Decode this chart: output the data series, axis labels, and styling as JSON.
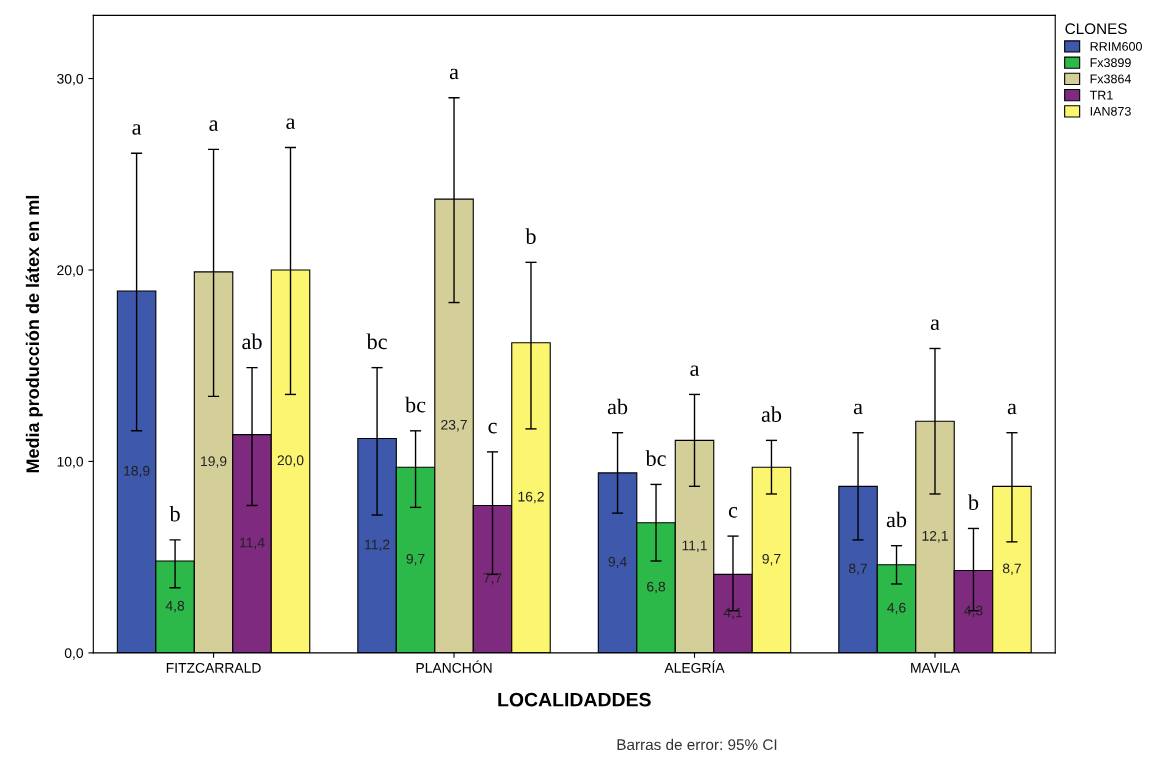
{
  "chart_data": {
    "type": "bar",
    "xlabel": "LOCALIDADDES",
    "ylabel": "Media producción de látex en ml",
    "legend_title": "CLONES",
    "categories": [
      "FITZCARRALD",
      "PLANCHÓN",
      "ALEGRÍA",
      "MAVILA"
    ],
    "series": [
      {
        "name": "RRIM600",
        "color": "#3e58ac",
        "values": [
          18.9,
          11.2,
          9.4,
          8.7
        ],
        "value_labels": [
          "18,9",
          "11,2",
          "9,4",
          "8,7"
        ],
        "errors": [
          [
            11.6,
            26.1
          ],
          [
            7.2,
            14.9
          ],
          [
            7.3,
            11.5
          ],
          [
            5.9,
            11.5
          ]
        ]
      },
      {
        "name": "Fx3899",
        "color": "#2db84a",
        "values": [
          4.8,
          9.7,
          6.8,
          4.6
        ],
        "value_labels": [
          "4,8",
          "9,7",
          "6,8",
          "4,6"
        ],
        "errors": [
          [
            3.4,
            5.9
          ],
          [
            7.6,
            11.6
          ],
          [
            4.8,
            8.8
          ],
          [
            3.6,
            5.6
          ]
        ]
      },
      {
        "name": "Fx3864",
        "color": "#d4ce98",
        "values": [
          19.9,
          23.7,
          11.1,
          12.1
        ],
        "value_labels": [
          "19,9",
          "23,7",
          "11,1",
          "12,1"
        ],
        "errors": [
          [
            13.4,
            26.3
          ],
          [
            18.3,
            29.0
          ],
          [
            8.7,
            13.5
          ],
          [
            8.3,
            15.9
          ]
        ]
      },
      {
        "name": "TR1",
        "color": "#7d2a7f",
        "values": [
          11.4,
          7.7,
          4.1,
          4.3
        ],
        "value_labels": [
          "11,4",
          "7,7",
          "4,1",
          "4,3"
        ],
        "errors": [
          [
            7.7,
            14.9
          ],
          [
            4.1,
            10.5
          ],
          [
            2.2,
            6.1
          ],
          [
            2.2,
            6.5
          ]
        ]
      },
      {
        "name": "IAN873",
        "color": "#fbf56f",
        "values": [
          20.0,
          16.2,
          9.7,
          8.7
        ],
        "value_labels": [
          "20,0",
          "16,2",
          "9,7",
          "8,7"
        ],
        "errors": [
          [
            13.5,
            26.4
          ],
          [
            11.7,
            20.4
          ],
          [
            8.3,
            11.1
          ],
          [
            5.8,
            11.5
          ]
        ]
      }
    ],
    "ylim": [
      0,
      33.3
    ],
    "yticks": [
      {
        "value": 0,
        "label": "0,0"
      },
      {
        "value": 10,
        "label": "10,0"
      },
      {
        "value": 20,
        "label": "20,0"
      },
      {
        "value": 30,
        "label": "30,0"
      }
    ],
    "grid": false,
    "legend": "top right",
    "annotations": [
      "a",
      "b",
      "a",
      "ab",
      "a",
      "bc",
      "bc",
      "a",
      "c",
      "b",
      "ab",
      "bc",
      "a",
      "c",
      "ab",
      "a",
      "ab",
      "a",
      "b",
      "a",
      "Barras de error: 95% CI"
    ]
  }
}
